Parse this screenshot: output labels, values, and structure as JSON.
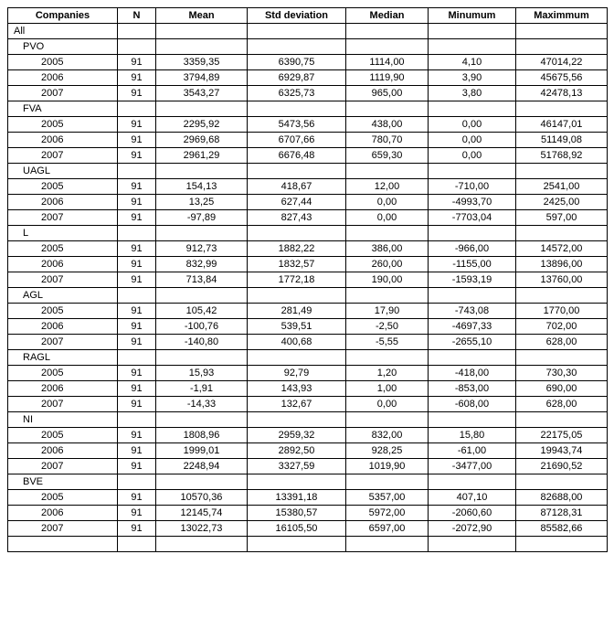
{
  "columns": [
    "Companies",
    "N",
    "Mean",
    "Std deviation",
    "Median",
    "Minumum",
    "Maximmum"
  ],
  "rows": [
    {
      "label": "All",
      "indent": 0
    },
    {
      "label": "PVO",
      "indent": 1
    },
    {
      "label": "2005",
      "indent": 2,
      "n": "91",
      "mean": "3359,35",
      "std": "6390,75",
      "median": "1114,00",
      "min": "4,10",
      "max": "47014,22"
    },
    {
      "label": "2006",
      "indent": 2,
      "n": "91",
      "mean": "3794,89",
      "std": "6929,87",
      "median": "1119,90",
      "min": "3,90",
      "max": "45675,56"
    },
    {
      "label": "2007",
      "indent": 2,
      "n": "91",
      "mean": "3543,27",
      "std": "6325,73",
      "median": "965,00",
      "min": "3,80",
      "max": "42478,13"
    },
    {
      "label": "FVA",
      "indent": 1
    },
    {
      "label": "2005",
      "indent": 2,
      "n": "91",
      "mean": "2295,92",
      "std": "5473,56",
      "median": "438,00",
      "min": "0,00",
      "max": "46147,01"
    },
    {
      "label": "2006",
      "indent": 2,
      "n": "91",
      "mean": "2969,68",
      "std": "6707,66",
      "median": "780,70",
      "min": "0,00",
      "max": "51149,08"
    },
    {
      "label": "2007",
      "indent": 2,
      "n": "91",
      "mean": "2961,29",
      "std": "6676,48",
      "median": "659,30",
      "min": "0,00",
      "max": "51768,92"
    },
    {
      "label": "UAGL",
      "indent": 1
    },
    {
      "label": "2005",
      "indent": 2,
      "n": "91",
      "mean": "154,13",
      "std": "418,67",
      "median": "12,00",
      "min": "-710,00",
      "max": "2541,00"
    },
    {
      "label": "2006",
      "indent": 2,
      "n": "91",
      "mean": "13,25",
      "std": "627,44",
      "median": "0,00",
      "min": "-4993,70",
      "max": "2425,00"
    },
    {
      "label": "2007",
      "indent": 2,
      "n": "91",
      "mean": "-97,89",
      "std": "827,43",
      "median": "0,00",
      "min": "-7703,04",
      "max": "597,00"
    },
    {
      "label": "L",
      "indent": 1
    },
    {
      "label": "2005",
      "indent": 2,
      "n": "91",
      "mean": "912,73",
      "std": "1882,22",
      "median": "386,00",
      "min": "-966,00",
      "max": "14572,00"
    },
    {
      "label": "2006",
      "indent": 2,
      "n": "91",
      "mean": "832,99",
      "std": "1832,57",
      "median": "260,00",
      "min": "-1155,00",
      "max": "13896,00"
    },
    {
      "label": "2007",
      "indent": 2,
      "n": "91",
      "mean": "713,84",
      "std": "1772,18",
      "median": "190,00",
      "min": "-1593,19",
      "max": "13760,00"
    },
    {
      "label": "AGL",
      "indent": 1
    },
    {
      "label": "2005",
      "indent": 2,
      "n": "91",
      "mean": "105,42",
      "std": "281,49",
      "median": "17,90",
      "min": "-743,08",
      "max": "1770,00"
    },
    {
      "label": "2006",
      "indent": 2,
      "n": "91",
      "mean": "-100,76",
      "std": "539,51",
      "median": "-2,50",
      "min": "-4697,33",
      "max": "702,00"
    },
    {
      "label": "2007",
      "indent": 2,
      "n": "91",
      "mean": "-140,80",
      "std": "400,68",
      "median": "-5,55",
      "min": "-2655,10",
      "max": "628,00"
    },
    {
      "label": "RAGL",
      "indent": 1
    },
    {
      "label": "2005",
      "indent": 2,
      "n": "91",
      "mean": "15,93",
      "std": "92,79",
      "median": "1,20",
      "min": "-418,00",
      "max": "730,30"
    },
    {
      "label": "2006",
      "indent": 2,
      "n": "91",
      "mean": "-1,91",
      "std": "143,93",
      "median": "1,00",
      "min": "-853,00",
      "max": "690,00"
    },
    {
      "label": "2007",
      "indent": 2,
      "n": "91",
      "mean": "-14,33",
      "std": "132,67",
      "median": "0,00",
      "min": "-608,00",
      "max": "628,00"
    },
    {
      "label": "NI",
      "indent": 1
    },
    {
      "label": "2005",
      "indent": 2,
      "n": "91",
      "mean": "1808,96",
      "std": "2959,32",
      "median": "832,00",
      "min": "15,80",
      "max": "22175,05"
    },
    {
      "label": "2006",
      "indent": 2,
      "n": "91",
      "mean": "1999,01",
      "std": "2892,50",
      "median": "928,25",
      "min": "-61,00",
      "max": "19943,74"
    },
    {
      "label": "2007",
      "indent": 2,
      "n": "91",
      "mean": "2248,94",
      "std": "3327,59",
      "median": "1019,90",
      "min": "-3477,00",
      "max": "21690,52"
    },
    {
      "label": "BVE",
      "indent": 1
    },
    {
      "label": "2005",
      "indent": 2,
      "n": "91",
      "mean": "10570,36",
      "std": "13391,18",
      "median": "5357,00",
      "min": "407,10",
      "max": "82688,00"
    },
    {
      "label": "2006",
      "indent": 2,
      "n": "91",
      "mean": "12145,74",
      "std": "15380,57",
      "median": "5972,00",
      "min": "-2060,60",
      "max": "87128,31"
    },
    {
      "label": "2007",
      "indent": 2,
      "n": "91",
      "mean": "13022,73",
      "std": "16105,50",
      "median": "6597,00",
      "min": "-2072,90",
      "max": "85582,66"
    },
    {
      "label": "",
      "indent": 0
    }
  ]
}
